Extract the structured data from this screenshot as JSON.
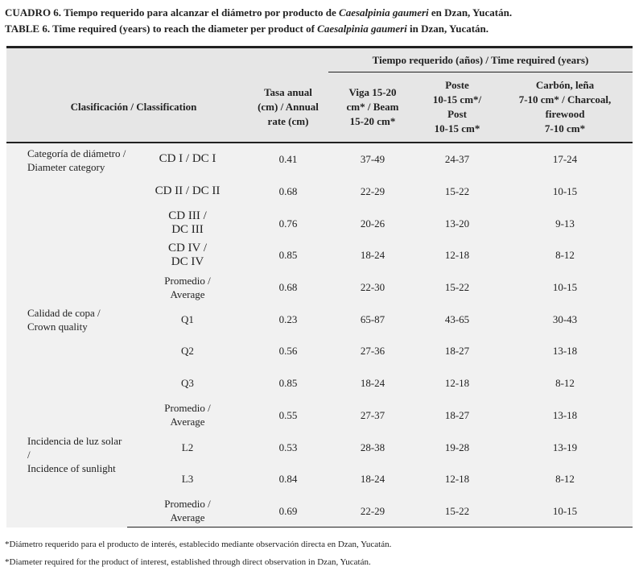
{
  "caption_es": {
    "prefix": "CUADRO 6. Tiempo requerido para alcanzar el diámetro por producto de ",
    "species": "Caesalpinia gaumeri",
    "suffix": " en Dzan, Yucatán."
  },
  "caption_en": {
    "prefix": "TABLE 6. Time required (years) to reach the diameter per product of ",
    "species": "Caesalpinia gaumeri",
    "suffix": " in Dzan, Yucatán."
  },
  "header": {
    "group": "Tiempo requerido (años) / Time required (years)",
    "classification": "Clasificación / Classification",
    "rate": [
      "Tasa anual",
      "(cm) / Annual",
      "rate (cm)"
    ],
    "beam": [
      "Viga 15-20",
      "cm* / Beam",
      "15-20 cm*"
    ],
    "post": [
      "Poste",
      "10-15 cm*/",
      "Post",
      "10-15 cm*"
    ],
    "charcoal": [
      "Carbón, leña",
      "7-10 cm* / Charcoal,",
      "firewood",
      "7-10 cm*"
    ]
  },
  "rows": [
    {
      "group": [
        "Categoría de diámetro /",
        "Diameter category"
      ],
      "cls": [
        "CD I / DC I"
      ],
      "rate": "0.41",
      "beam": "37-49",
      "post": "24-37",
      "charcoal": "17-24"
    },
    {
      "cls": [
        "CD II / DC II"
      ],
      "rate": "0.68",
      "beam": "22-29",
      "post": "15-22",
      "charcoal": "10-15"
    },
    {
      "cls": [
        "CD III /",
        "DC III"
      ],
      "rate": "0.76",
      "beam": "20-26",
      "post": "13-20",
      "charcoal": "9-13"
    },
    {
      "cls": [
        "CD IV /",
        "DC IV"
      ],
      "rate": "0.85",
      "beam": "18-24",
      "post": "12-18",
      "charcoal": "8-12"
    },
    {
      "cls": [
        "Promedio  /",
        "Average"
      ],
      "rate": "0.68",
      "beam": "22-30",
      "post": "15-22",
      "charcoal": "10-15"
    },
    {
      "group": [
        "Calidad de copa /",
        "Crown quality"
      ],
      "cls": [
        "Q1"
      ],
      "rate": "0.23",
      "beam": "65-87",
      "post": "43-65",
      "charcoal": "30-43"
    },
    {
      "cls": [
        "Q2"
      ],
      "rate": "0.56",
      "beam": "27-36",
      "post": "18-27",
      "charcoal": "13-18"
    },
    {
      "cls": [
        "Q3"
      ],
      "rate": "0.85",
      "beam": "18-24",
      "post": "12-18",
      "charcoal": "8-12"
    },
    {
      "cls": [
        "Promedio /",
        "Average"
      ],
      "rate": "0.55",
      "beam": "27-37",
      "post": "18-27",
      "charcoal": "13-18"
    },
    {
      "group": [
        "Incidencia de luz solar /",
        "Incidence of sunlight"
      ],
      "cls": [
        "L2"
      ],
      "rate": "0.53",
      "beam": "28-38",
      "post": "19-28",
      "charcoal": "13-19"
    },
    {
      "cls": [
        "L3"
      ],
      "rate": "0.84",
      "beam": "18-24",
      "post": "12-18",
      "charcoal": "8-12"
    },
    {
      "cls": [
        "Promedio /",
        "Average"
      ],
      "rate": "0.69",
      "beam": "22-29",
      "post": "15-22",
      "charcoal": "10-15"
    }
  ],
  "footnotes": [
    "*Diámetro requerido para el producto de interés, establecido mediante observación directa en Dzan, Yucatán.",
    "*Diameter required for the product of interest, established through direct observation in Dzan, Yucatán."
  ]
}
